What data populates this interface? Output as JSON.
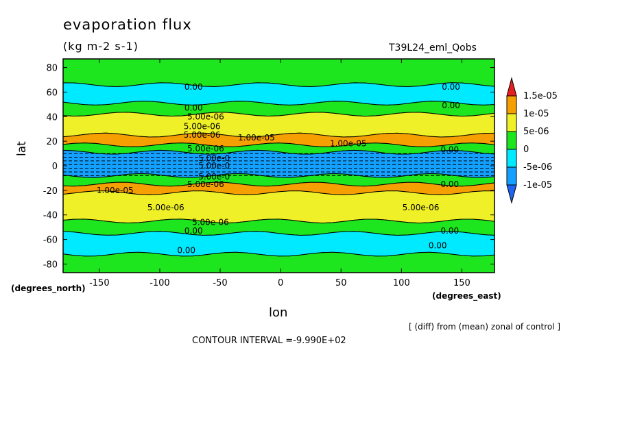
{
  "chart_data": {
    "type": "contour",
    "title": "evaporation flux",
    "units": "(kg m-2 s-1)",
    "run_label": "T39L24_eml_Qobs",
    "xlabel": "lon",
    "ylabel": "lat",
    "x_unit_label": "(degrees_east)",
    "y_unit_label": "(degrees_north)",
    "xlim": [
      -180,
      177
    ],
    "ylim": [
      -87,
      87
    ],
    "x_ticks": [
      -150,
      -100,
      -50,
      0,
      50,
      100,
      150
    ],
    "y_ticks": [
      80,
      60,
      40,
      20,
      0,
      -20,
      -40,
      -60,
      -80
    ],
    "x_tick_labels": [
      "-150",
      "-100",
      "-50",
      "0",
      "50",
      "100",
      "150"
    ],
    "y_tick_labels": [
      "80",
      "60",
      "40",
      "20",
      "0",
      "-20",
      "-40",
      "-60",
      "-80"
    ],
    "colorbar": {
      "levels": [
        "1.5e-05",
        "1e-05",
        "5e-06",
        "0",
        "-5e-06",
        "-1e-05"
      ],
      "colors": [
        "#e61e1e",
        "#f5a000",
        "#f0f028",
        "#1ee61e",
        "#00eaff",
        "#14a0ff",
        "#1e64f0"
      ]
    },
    "zonal_bands": [
      {
        "lat": [
          66,
          87
        ],
        "level": "0 to 5e-06"
      },
      {
        "lat": [
          51,
          66
        ],
        "level": "-5e-06 to 0"
      },
      {
        "lat": [
          42,
          51
        ],
        "level": "0 to 5e-06"
      },
      {
        "lat": [
          25,
          42
        ],
        "level": "5e-06 to 1e-05"
      },
      {
        "lat": [
          17,
          25
        ],
        "level": "1e-05 to 1.5e-05"
      },
      {
        "lat": [
          11,
          17
        ],
        "level": "0 to 5e-06"
      },
      {
        "lat": [
          -8,
          11
        ],
        "level": "-1e-05 to -5e-06"
      },
      {
        "lat": [
          -15,
          -8
        ],
        "level": "0 to 5e-06"
      },
      {
        "lat": [
          -22,
          -15
        ],
        "level": "1e-05 to 1.5e-05"
      },
      {
        "lat": [
          -45,
          -22
        ],
        "level": "5e-06 to 1e-05"
      },
      {
        "lat": [
          -55,
          -45
        ],
        "level": "0 to 5e-06"
      },
      {
        "lat": [
          -72,
          -55
        ],
        "level": "-5e-06 to 0"
      },
      {
        "lat": [
          -87,
          -72
        ],
        "level": "0 to 5e-06"
      }
    ],
    "contour_labels": [
      {
        "text": "0.00",
        "lon": -72,
        "lat": 64
      },
      {
        "text": "0.00",
        "lon": 141,
        "lat": 64
      },
      {
        "text": "0.00",
        "lon": -72,
        "lat": 47
      },
      {
        "text": "0.00",
        "lon": 141,
        "lat": 49
      },
      {
        "text": "5.00e-06",
        "lon": -62,
        "lat": 40
      },
      {
        "text": "5.00e-06",
        "lon": -65,
        "lat": 32
      },
      {
        "text": "5.00e-06",
        "lon": -65,
        "lat": 25
      },
      {
        "text": "1.00e-05",
        "lon": -20,
        "lat": 23
      },
      {
        "text": "1.00e-05",
        "lon": 56,
        "lat": 18
      },
      {
        "text": "5.00e-06",
        "lon": -62,
        "lat": 14
      },
      {
        "text": "0.00",
        "lon": 140,
        "lat": 13
      },
      {
        "text": "5.00e-0",
        "lon": -55,
        "lat": 6
      },
      {
        "text": "5.00e-0",
        "lon": -55,
        "lat": 0
      },
      {
        "text": "5.00e-0",
        "lon": -55,
        "lat": -9
      },
      {
        "text": "1.00e-05",
        "lon": -137,
        "lat": -20
      },
      {
        "text": "5.00e-06",
        "lon": -62,
        "lat": -15
      },
      {
        "text": "0.00",
        "lon": 140,
        "lat": -15
      },
      {
        "text": "5.00e-06",
        "lon": -95,
        "lat": -34
      },
      {
        "text": "5.00e-06",
        "lon": 116,
        "lat": -34
      },
      {
        "text": "5.00e-06",
        "lon": -58,
        "lat": -46
      },
      {
        "text": "0.00",
        "lon": -72,
        "lat": -53
      },
      {
        "text": "0.00",
        "lon": 140,
        "lat": -53
      },
      {
        "text": "0.00",
        "lon": -78,
        "lat": -69
      },
      {
        "text": "0.00",
        "lon": 130,
        "lat": -65
      }
    ]
  },
  "footer": {
    "note": "[ (diff) from (mean) zonal of control ]",
    "contour_interval": "CONTOUR INTERVAL =-9.990E+02"
  }
}
